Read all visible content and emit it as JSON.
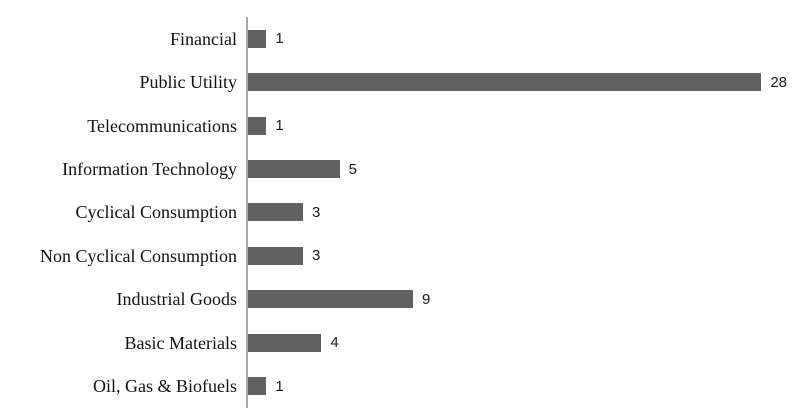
{
  "chart_data": {
    "type": "bar",
    "orientation": "horizontal",
    "title": "",
    "xlabel": "",
    "ylabel": "",
    "categories": [
      "Financial",
      "Public Utility",
      "Telecommunications",
      "Information Technology",
      "Cyclical Consumption",
      "Non Cyclical Consumption",
      "Industrial Goods",
      "Basic Materials",
      "Oil, Gas & Biofuels"
    ],
    "values": [
      1,
      28,
      1,
      5,
      3,
      3,
      9,
      4,
      1
    ],
    "data_labels": [
      1,
      28,
      1,
      5,
      3,
      3,
      9,
      4,
      1
    ],
    "xlim": [
      0,
      30
    ],
    "grid": false,
    "legend": "none",
    "colors": {
      "bar": "#616161",
      "axis": "#A6A6A6",
      "label_text": "#111111",
      "value_text": "#1a1a1a",
      "background": "#ffffff"
    }
  }
}
